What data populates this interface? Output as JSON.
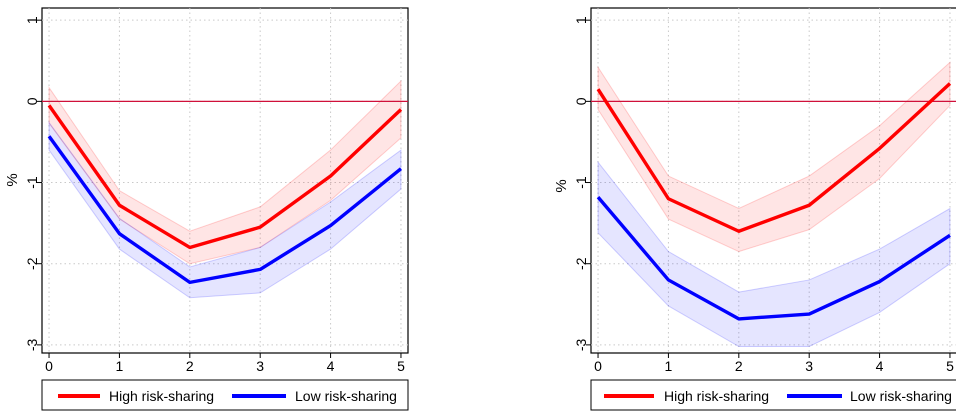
{
  "chart_data": [
    {
      "type": "line",
      "ylabel": "%",
      "x": [
        0,
        1,
        2,
        3,
        4,
        5
      ],
      "xlim": [
        -0.1,
        5.1
      ],
      "ylim": [
        -3.1,
        1.15
      ],
      "yticks": [
        1,
        0,
        -1,
        -2,
        -3
      ],
      "ytick_labels": [
        "1",
        "0",
        "-1",
        "-2",
        "-3"
      ],
      "xtick_labels": [
        "0",
        "1",
        "2",
        "3",
        "4",
        "5"
      ],
      "grid": true,
      "reference_line": {
        "y": 0,
        "color": "#d0103a"
      },
      "series": [
        {
          "name": "High risk-sharing",
          "color": "#ff0000",
          "values": [
            -0.05,
            -1.28,
            -1.8,
            -1.55,
            -0.92,
            -0.1
          ],
          "lower": [
            -0.27,
            -1.45,
            -2.0,
            -1.8,
            -1.22,
            -0.45
          ],
          "upper": [
            0.17,
            -1.1,
            -1.6,
            -1.3,
            -0.6,
            0.25
          ]
        },
        {
          "name": "Low risk-sharing",
          "color": "#0000ff",
          "values": [
            -0.43,
            -1.63,
            -2.23,
            -2.07,
            -1.53,
            -0.83
          ],
          "lower": [
            -0.6,
            -1.82,
            -2.42,
            -2.36,
            -1.82,
            -1.08
          ],
          "upper": [
            -0.26,
            -1.44,
            -2.04,
            -1.8,
            -1.24,
            -0.6
          ]
        }
      ],
      "legend": {
        "position": "bottom",
        "entries": [
          "High risk-sharing",
          "Low risk-sharing"
        ]
      }
    },
    {
      "type": "line",
      "ylabel": "%",
      "x": [
        0,
        1,
        2,
        3,
        4,
        5
      ],
      "xlim": [
        -0.1,
        5.1
      ],
      "ylim": [
        -3.1,
        1.15
      ],
      "yticks": [
        1,
        0,
        -1,
        -2,
        -3
      ],
      "ytick_labels": [
        "1",
        "0",
        "-1",
        "-2",
        "-3"
      ],
      "xtick_labels": [
        "0",
        "1",
        "2",
        "3",
        "4",
        "5"
      ],
      "grid": true,
      "reference_line": {
        "y": 0,
        "color": "#d0103a"
      },
      "series": [
        {
          "name": "High risk-sharing",
          "color": "#ff0000",
          "values": [
            0.15,
            -1.2,
            -1.6,
            -1.28,
            -0.58,
            0.22
          ],
          "lower": [
            -0.1,
            -1.45,
            -1.85,
            -1.58,
            -0.95,
            -0.05
          ],
          "upper": [
            0.42,
            -0.92,
            -1.32,
            -0.92,
            -0.3,
            0.48
          ]
        },
        {
          "name": "Low risk-sharing",
          "color": "#0000ff",
          "values": [
            -1.18,
            -2.2,
            -2.68,
            -2.62,
            -2.22,
            -1.65
          ],
          "lower": [
            -1.62,
            -2.52,
            -3.02,
            -3.02,
            -2.6,
            -2.0
          ],
          "upper": [
            -0.75,
            -1.85,
            -2.35,
            -2.2,
            -1.82,
            -1.32
          ]
        }
      ],
      "legend": {
        "position": "bottom",
        "entries": [
          "High risk-sharing",
          "Low risk-sharing"
        ]
      }
    }
  ]
}
